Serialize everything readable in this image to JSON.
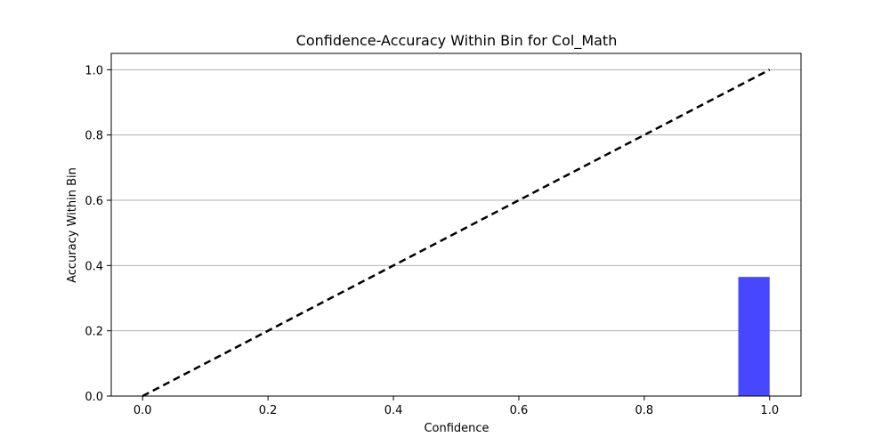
{
  "chart_data": {
    "type": "bar",
    "title": "Confidence-Accuracy Within Bin for Col_Math",
    "xlabel": "Confidence",
    "ylabel": "Accuracy Within Bin",
    "xlim": [
      -0.05,
      1.05
    ],
    "ylim": [
      0.0,
      1.05
    ],
    "xticks": [
      "0.0",
      "0.2",
      "0.4",
      "0.6",
      "0.8",
      "1.0"
    ],
    "yticks": [
      "0.0",
      "0.2",
      "0.4",
      "0.6",
      "0.8",
      "1.0"
    ],
    "grid": "horizontal",
    "bars": [
      {
        "x_start": 0.95,
        "x_end": 1.0,
        "value": 0.365
      }
    ],
    "reference_line": {
      "x": [
        0.0,
        1.0
      ],
      "y": [
        0.0,
        1.0
      ],
      "style": "dashed"
    },
    "colors": {
      "bar": "#4747ff",
      "reference_line": "#000000",
      "grid": "#b0b0b0",
      "axes": "#000000"
    }
  }
}
